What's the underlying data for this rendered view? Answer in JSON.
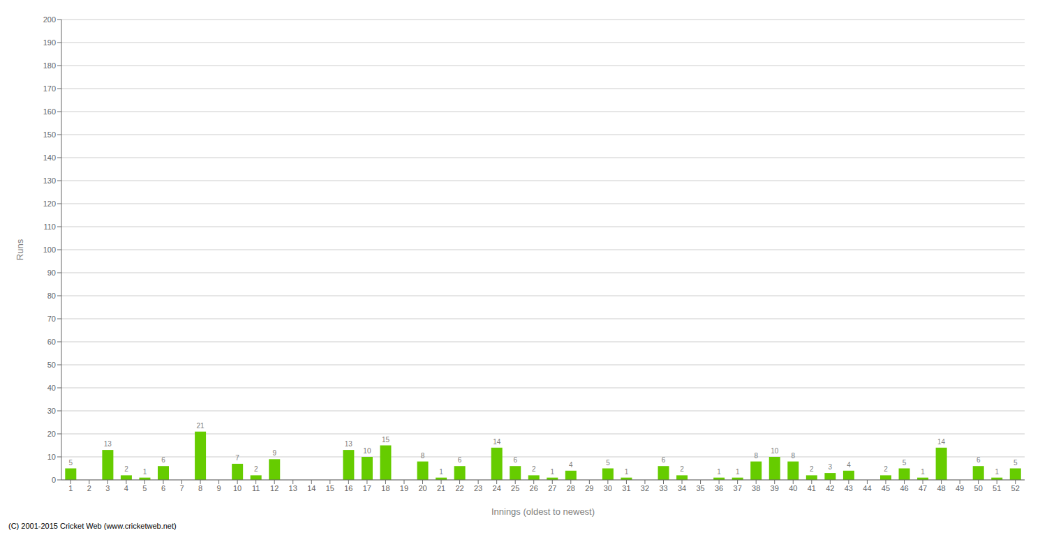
{
  "chart_data": {
    "type": "bar",
    "categories": [
      "1",
      "2",
      "3",
      "4",
      "5",
      "6",
      "7",
      "8",
      "9",
      "10",
      "11",
      "12",
      "13",
      "14",
      "15",
      "16",
      "17",
      "18",
      "19",
      "20",
      "21",
      "22",
      "23",
      "24",
      "25",
      "26",
      "27",
      "28",
      "29",
      "30",
      "31",
      "32",
      "33",
      "34",
      "35",
      "36",
      "37",
      "38",
      "39",
      "40",
      "41",
      "42",
      "43",
      "44",
      "45",
      "46",
      "47",
      "48",
      "49",
      "50",
      "51",
      "52"
    ],
    "values": [
      5,
      0,
      13,
      2,
      1,
      6,
      0,
      21,
      0,
      7,
      2,
      9,
      0,
      0,
      0,
      13,
      10,
      15,
      0,
      8,
      1,
      6,
      0,
      14,
      6,
      2,
      1,
      4,
      0,
      5,
      1,
      0,
      6,
      2,
      0,
      1,
      1,
      8,
      10,
      8,
      2,
      3,
      4,
      0,
      2,
      5,
      1,
      14,
      0,
      6,
      1,
      5
    ],
    "color": "#66cc00",
    "xlabel": "Innings (oldest to newest)",
    "ylabel": "Runs",
    "ylim": [
      0,
      200
    ],
    "yticks": [
      0,
      10,
      20,
      30,
      40,
      50,
      60,
      70,
      80,
      90,
      100,
      110,
      120,
      130,
      140,
      150,
      160,
      170,
      180,
      190,
      200
    ],
    "grid": true,
    "data_labels": true,
    "annotations": [
      "(C) 2001-2015 Cricket Web (www.cricketweb.net)"
    ]
  }
}
